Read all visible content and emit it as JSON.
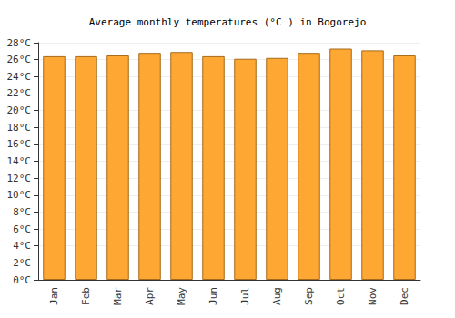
{
  "chart_data": {
    "type": "bar",
    "title": "Average monthly temperatures (°C ) in Bogorejo",
    "categories": [
      "Jan",
      "Feb",
      "Mar",
      "Apr",
      "May",
      "Jun",
      "Jul",
      "Aug",
      "Sep",
      "Oct",
      "Nov",
      "Dec"
    ],
    "values": [
      26.4,
      26.4,
      26.5,
      26.8,
      26.9,
      26.4,
      26.1,
      26.2,
      26.8,
      27.3,
      27.1,
      26.5
    ],
    "color": "#ffa733",
    "ylim": [
      0,
      28
    ],
    "yticks": [
      {
        "value": 0,
        "label": "0°C"
      },
      {
        "value": 2,
        "label": "2°C"
      },
      {
        "value": 4,
        "label": "4°C"
      },
      {
        "value": 6,
        "label": "6°C"
      },
      {
        "value": 8,
        "label": "8°C"
      },
      {
        "value": 10,
        "label": "10°C"
      },
      {
        "value": 12,
        "label": "12°C"
      },
      {
        "value": 14,
        "label": "14°C"
      },
      {
        "value": 16,
        "label": "16°C"
      },
      {
        "value": 18,
        "label": "18°C"
      },
      {
        "value": 20,
        "label": "20°C"
      },
      {
        "value": 22,
        "label": "22°C"
      },
      {
        "value": 24,
        "label": "24°C"
      },
      {
        "value": 26,
        "label": "26°C"
      },
      {
        "value": 28,
        "label": "28°C"
      }
    ],
    "grid": true
  }
}
